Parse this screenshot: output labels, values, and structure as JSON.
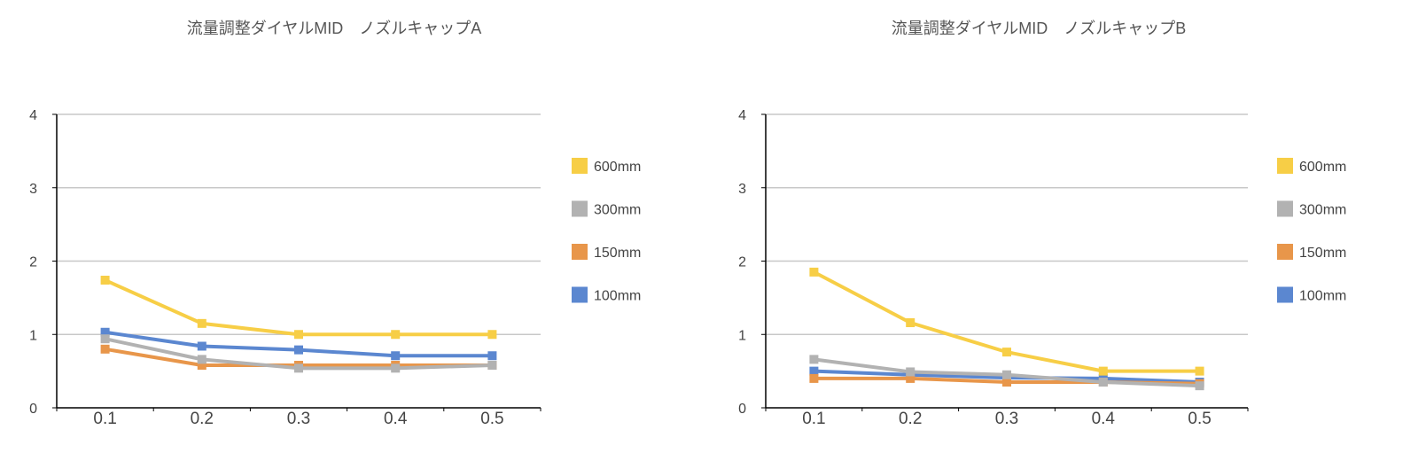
{
  "chart_data": [
    {
      "type": "line",
      "title": "流量調整ダイヤルMID　ノズルキャップA",
      "categories": [
        "0.1",
        "0.2",
        "0.3",
        "0.4",
        "0.5"
      ],
      "ylim": [
        0,
        4
      ],
      "yticks": [
        "0",
        "1",
        "2",
        "3",
        "4"
      ],
      "grid": true,
      "legend": "right",
      "series": [
        {
          "name": "600mm",
          "color": "#F7CE46",
          "values": [
            1.74,
            1.15,
            1.0,
            1.0,
            1.0
          ]
        },
        {
          "name": "300mm",
          "color": "#B2B2B2",
          "values": [
            0.94,
            0.66,
            0.54,
            0.54,
            0.58
          ]
        },
        {
          "name": "150mm",
          "color": "#E8964A",
          "values": [
            0.8,
            0.58,
            0.58,
            0.58,
            0.58
          ]
        },
        {
          "name": "100mm",
          "color": "#5B87D0",
          "values": [
            1.03,
            0.84,
            0.79,
            0.71,
            0.71
          ]
        }
      ]
    },
    {
      "type": "line",
      "title": "流量調整ダイヤルMID　ノズルキャップB",
      "categories": [
        "0.1",
        "0.2",
        "0.3",
        "0.4",
        "0.5"
      ],
      "ylim": [
        0,
        4
      ],
      "yticks": [
        "0",
        "1",
        "2",
        "3",
        "4"
      ],
      "grid": true,
      "legend": "right",
      "series": [
        {
          "name": "600mm",
          "color": "#F7CE46",
          "values": [
            1.85,
            1.16,
            0.76,
            0.5,
            0.5
          ]
        },
        {
          "name": "300mm",
          "color": "#B2B2B2",
          "values": [
            0.66,
            0.49,
            0.45,
            0.35,
            0.3
          ]
        },
        {
          "name": "150mm",
          "color": "#E8964A",
          "values": [
            0.4,
            0.4,
            0.35,
            0.35,
            0.33
          ]
        },
        {
          "name": "100mm",
          "color": "#5B87D0",
          "values": [
            0.5,
            0.45,
            0.41,
            0.4,
            0.35
          ]
        }
      ]
    }
  ]
}
